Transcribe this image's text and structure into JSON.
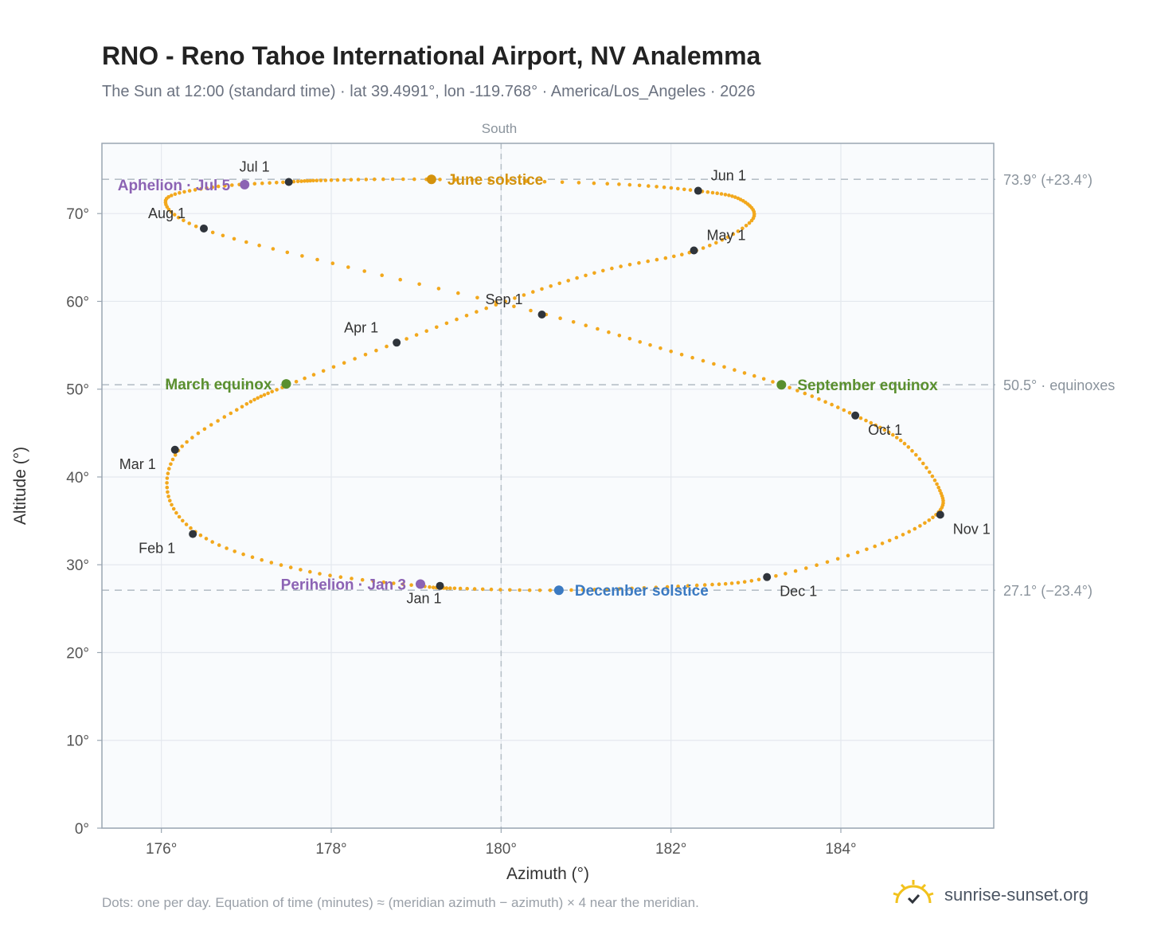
{
  "title": "RNO - Reno Tahoe International Airport, NV Analemma",
  "subtitle": "The Sun at 12:00 (standard time) · lat 39.4991°, lon -119.768° · America/Los_Angeles · 2026",
  "footnote": "Dots: one per day. Equation of time (minutes) ≈ (meridian azimuth − azimuth) × 4 near the meridian.",
  "brand": {
    "name": "sunrise-sunset.org",
    "icon": "sun-logo-icon"
  },
  "colors": {
    "analemma": "#f2a81d",
    "month_marker": "#2f343b",
    "solstice_june": "#d4920c",
    "solstice_december": "#3b7ac2",
    "equinox": "#5a8f2e",
    "apsis": "#8c63b4",
    "reference_line": "#b7c0c8",
    "plot_bg": "#f9fbfd",
    "grid": "#e4e8ee"
  },
  "chart_data": {
    "type": "scatter",
    "xlabel": "Azimuth (°)",
    "ylabel": "Altitude (°)",
    "xlim": [
      175.3,
      185.8
    ],
    "ylim": [
      0,
      78
    ],
    "x_ticks": [
      "176°",
      "178°",
      "180°",
      "182°",
      "184°"
    ],
    "x_tick_values": [
      176,
      178,
      180,
      182,
      184
    ],
    "y_ticks": [
      "0°",
      "10°",
      "20°",
      "30°",
      "40°",
      "50°",
      "60°",
      "70°"
    ],
    "y_tick_values": [
      0,
      10,
      20,
      30,
      40,
      50,
      60,
      70
    ],
    "grid": true,
    "meridian": {
      "label": "South",
      "azimuth": 180
    },
    "reference_lines": [
      {
        "label": "73.9° (+23.4°)",
        "altitude": 73.9
      },
      {
        "label": "50.5° · equinoxes",
        "altitude": 50.5
      },
      {
        "label": "27.1° (−23.4°)",
        "altitude": 27.1
      }
    ],
    "analemma_points": [
      [
        179.03,
        27.6
      ],
      [
        177.75,
        29.2
      ],
      [
        176.6,
        32.6
      ],
      [
        176.1,
        37.3
      ],
      [
        176.2,
        43.0
      ],
      [
        176.95,
        48.0
      ],
      [
        177.5,
        50.5
      ],
      [
        178.77,
        55.3
      ],
      [
        180.05,
        60.0
      ],
      [
        181.2,
        63.5
      ],
      [
        182.3,
        65.8
      ],
      [
        182.95,
        69.2
      ],
      [
        182.82,
        71.6
      ],
      [
        182.3,
        72.6
      ],
      [
        181.25,
        73.4
      ],
      [
        179.12,
        73.9
      ],
      [
        178.0,
        73.8
      ],
      [
        177.5,
        73.6
      ],
      [
        176.6,
        73.0
      ],
      [
        176.05,
        71.5
      ],
      [
        176.5,
        68.2
      ],
      [
        178.2,
        63.9
      ],
      [
        180.53,
        58.5
      ],
      [
        182.0,
        54.3
      ],
      [
        183.3,
        50.5
      ],
      [
        184.17,
        47.0
      ],
      [
        184.75,
        43.8
      ],
      [
        185.15,
        38.8
      ],
      [
        185.12,
        35.7
      ],
      [
        184.4,
        32.1
      ],
      [
        183.13,
        28.5
      ],
      [
        182.2,
        27.6
      ],
      [
        180.7,
        27.1
      ],
      [
        179.52,
        27.3
      ],
      [
        179.03,
        27.6
      ]
    ],
    "month_markers": [
      {
        "label": "Jan 1",
        "azimuth": 179.28,
        "altitude": 27.6
      },
      {
        "label": "Feb 1",
        "azimuth": 176.37,
        "altitude": 33.5
      },
      {
        "label": "Mar 1",
        "azimuth": 176.16,
        "altitude": 43.1
      },
      {
        "label": "Apr 1",
        "azimuth": 178.77,
        "altitude": 55.3
      },
      {
        "label": "May 1",
        "azimuth": 182.27,
        "altitude": 65.8
      },
      {
        "label": "Jun 1",
        "azimuth": 182.32,
        "altitude": 72.6
      },
      {
        "label": "Jul 1",
        "azimuth": 177.5,
        "altitude": 73.6
      },
      {
        "label": "Aug 1",
        "azimuth": 176.5,
        "altitude": 68.3
      },
      {
        "label": "Sep 1",
        "azimuth": 180.48,
        "altitude": 58.5
      },
      {
        "label": "Oct 1",
        "azimuth": 184.17,
        "altitude": 47.0
      },
      {
        "label": "Nov 1",
        "azimuth": 185.17,
        "altitude": 35.7
      },
      {
        "label": "Dec 1",
        "azimuth": 183.13,
        "altitude": 28.6
      }
    ],
    "key_events": [
      {
        "label": "June solstice",
        "azimuth": 179.18,
        "altitude": 73.9,
        "color": "solstice_june"
      },
      {
        "label": "December solstice",
        "azimuth": 180.68,
        "altitude": 27.1,
        "color": "solstice_december"
      },
      {
        "label": "March equinox",
        "azimuth": 177.47,
        "altitude": 50.6,
        "color": "equinox"
      },
      {
        "label": "September equinox",
        "azimuth": 183.3,
        "altitude": 50.5,
        "color": "equinox"
      },
      {
        "label": "Aphelion · Jul 5",
        "azimuth": 176.98,
        "altitude": 73.3,
        "color": "apsis"
      },
      {
        "label": "Perihelion · Jan 3",
        "azimuth": 179.05,
        "altitude": 27.8,
        "color": "apsis"
      }
    ]
  }
}
